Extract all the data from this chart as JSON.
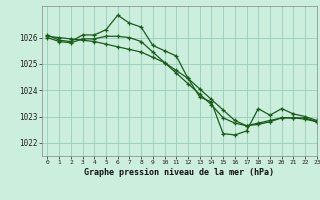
{
  "xlabel": "Graphe pression niveau de la mer (hPa)",
  "xlim": [
    -0.5,
    23
  ],
  "ylim": [
    1021.5,
    1027.2
  ],
  "yticks": [
    1022,
    1023,
    1024,
    1025,
    1026
  ],
  "xticks": [
    0,
    1,
    2,
    3,
    4,
    5,
    6,
    7,
    8,
    9,
    10,
    11,
    12,
    13,
    14,
    15,
    16,
    17,
    18,
    19,
    20,
    21,
    22,
    23
  ],
  "background_color": "#cceedd",
  "grid_color": "#99ccbb",
  "line_color": "#1a5c1a",
  "marker": "+",
  "series1_x": [
    0,
    1,
    2,
    3,
    4,
    5,
    6,
    7,
    8,
    9,
    10,
    11,
    12,
    13,
    14,
    15,
    16,
    17,
    18,
    19,
    20,
    21,
    22,
    23
  ],
  "series1_y": [
    1026.1,
    1025.9,
    1025.85,
    1026.1,
    1026.1,
    1026.3,
    1026.85,
    1026.55,
    1026.4,
    1025.7,
    1025.5,
    1025.3,
    1024.45,
    1023.75,
    1023.55,
    1022.35,
    1022.3,
    1022.45,
    1023.3,
    1023.05,
    1023.3,
    1023.1,
    1023.0,
    1022.85
  ],
  "series2_x": [
    0,
    1,
    2,
    3,
    4,
    5,
    6,
    7,
    8,
    9,
    10,
    11,
    12,
    13,
    14,
    15,
    16,
    17,
    18,
    19,
    20,
    21,
    22,
    23
  ],
  "series2_y": [
    1026.0,
    1025.85,
    1025.8,
    1025.95,
    1025.95,
    1026.05,
    1026.05,
    1026.0,
    1025.85,
    1025.45,
    1025.05,
    1024.65,
    1024.25,
    1023.85,
    1023.45,
    1022.95,
    1022.75,
    1022.65,
    1022.75,
    1022.85,
    1022.95,
    1022.95,
    1022.9,
    1022.8
  ],
  "series3_x": [
    0,
    1,
    2,
    3,
    4,
    5,
    6,
    7,
    8,
    9,
    10,
    11,
    12,
    13,
    14,
    15,
    16,
    17,
    18,
    19,
    20,
    21,
    22,
    23
  ],
  "series3_y": [
    1026.05,
    1026.0,
    1025.95,
    1025.9,
    1025.85,
    1025.75,
    1025.65,
    1025.55,
    1025.45,
    1025.25,
    1025.05,
    1024.75,
    1024.45,
    1024.05,
    1023.65,
    1023.25,
    1022.85,
    1022.65,
    1022.7,
    1022.8,
    1022.95,
    1022.95,
    1022.95,
    1022.8
  ]
}
